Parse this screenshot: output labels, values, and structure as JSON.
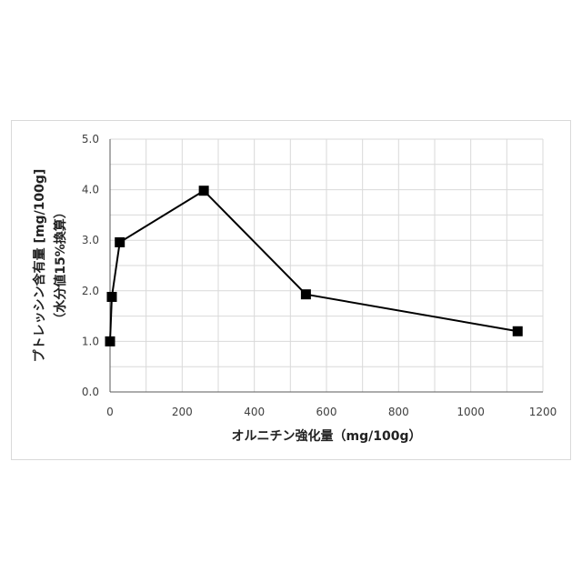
{
  "chart_data": {
    "type": "scatter",
    "title": "",
    "xlabel": "オルニチン強化量（mg/100g）",
    "ylabel_lines": [
      "プトレッシン含有量 [mg/100g]",
      "（水分値15%換算）"
    ],
    "xlim": [
      0,
      1200
    ],
    "ylim": [
      0,
      5
    ],
    "x_ticks": [
      0,
      200,
      400,
      600,
      800,
      1000,
      1200
    ],
    "y_ticks": [
      0,
      1,
      2,
      3,
      4,
      5
    ],
    "x_tick_labels": [
      "0",
      "200",
      "400",
      "600",
      "800",
      "1000",
      "1200"
    ],
    "y_tick_labels": [
      "0.0",
      "1.0",
      "2.0",
      "3.0",
      "4.0",
      "5.0"
    ],
    "x_minor_step": 100,
    "y_minor_step": 0.5,
    "grid": true,
    "legend": "none",
    "series": [
      {
        "x": [
          0,
          5,
          27,
          260,
          543,
          1130
        ],
        "y": [
          1.0,
          1.88,
          2.96,
          3.98,
          1.93,
          1.2
        ],
        "marker": "square",
        "line": true,
        "color": "#000000"
      }
    ]
  }
}
